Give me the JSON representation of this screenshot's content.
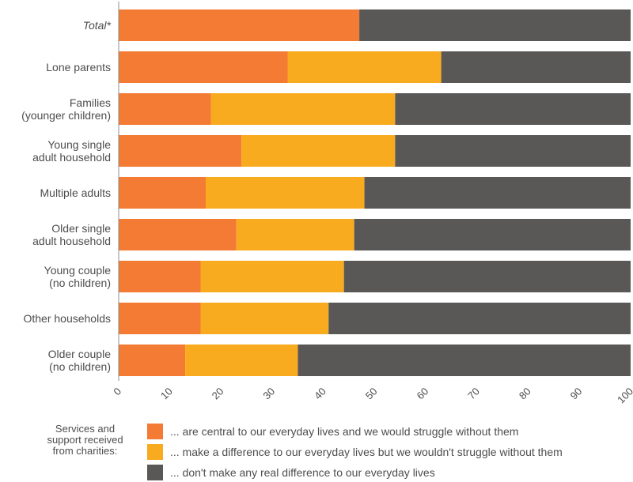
{
  "chart_data": {
    "type": "bar",
    "orientation": "horizontal",
    "stacked": true,
    "categories": [
      "Total*",
      "Lone parents",
      "Families (younger children)",
      "Young single adult household",
      "Multiple adults",
      "Older single adult household",
      "Young couple (no children)",
      "Other households",
      "Older couple (no children)"
    ],
    "category_lines": [
      [
        "Total*"
      ],
      [
        "Lone parents"
      ],
      [
        "Families",
        "(younger children)"
      ],
      [
        "Young single",
        "adult household"
      ],
      [
        "Multiple adults"
      ],
      [
        "Older single",
        "adult household"
      ],
      [
        "Young couple",
        "(no children)"
      ],
      [
        "Other households"
      ],
      [
        "Older couple",
        "(no children)"
      ]
    ],
    "italic_categories": [
      "Total*"
    ],
    "series": [
      {
        "name": "... are central to our everyday lives and we would struggle without them",
        "color": "#f37b33",
        "values": [
          47,
          33,
          18,
          24,
          17,
          23,
          16,
          16,
          13
        ]
      },
      {
        "name": "... make a difference to our everyday lives but we wouldn't struggle without them",
        "color": "#f9ab1f",
        "values": [
          0,
          30,
          36,
          30,
          31,
          23,
          28,
          25,
          22
        ]
      },
      {
        "name": "... don't make any real difference to our everyday lives",
        "color": "#595857",
        "values": [
          53,
          37,
          46,
          46,
          52,
          54,
          56,
          59,
          65
        ]
      }
    ],
    "xlim": [
      0,
      100
    ],
    "x_ticks": [
      0,
      10,
      20,
      30,
      40,
      50,
      60,
      70,
      80,
      90,
      100
    ],
    "grid": false,
    "legend_position": "bottom",
    "legend_title": [
      "Services and",
      "support received",
      "from charities:"
    ]
  }
}
